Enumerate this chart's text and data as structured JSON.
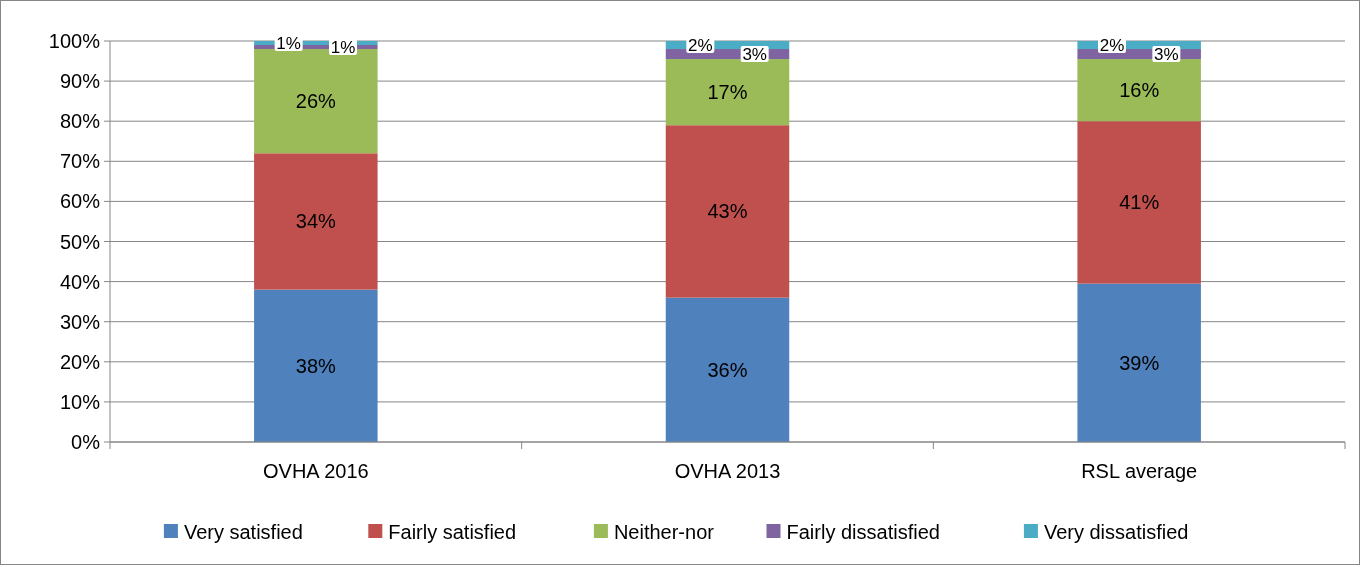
{
  "chart_data": {
    "type": "bar",
    "stacked": true,
    "categories": [
      "OVHA 2016",
      "OVHA 2013",
      "RSL average"
    ],
    "series": [
      {
        "name": "Very satisfied",
        "color": "#4f81bd",
        "values": [
          38,
          36,
          39.5
        ],
        "value_labels": [
          "38%",
          "36%",
          "39%"
        ]
      },
      {
        "name": "Fairly satisfied",
        "color": "#c0504d",
        "values": [
          34,
          43,
          40.5
        ],
        "value_labels": [
          "34%",
          "43%",
          "41%"
        ]
      },
      {
        "name": "Neither-nor",
        "color": "#9bbb59",
        "values": [
          26,
          16.5,
          15.5
        ],
        "value_labels": [
          "26%",
          "17%",
          "16%"
        ]
      },
      {
        "name": "Fairly dissatisfied",
        "color": "#8064a2",
        "values": [
          1,
          2.5,
          2.5
        ],
        "value_labels": [
          "1%",
          "3%",
          "3%"
        ]
      },
      {
        "name": "Very dissatisfied",
        "color": "#4bacc6",
        "values": [
          1,
          2,
          2
        ],
        "value_labels": [
          "1%",
          "2%",
          "2%"
        ]
      }
    ],
    "ylim": [
      0,
      100
    ],
    "yticks": [
      {
        "value": 0,
        "label": "0%"
      },
      {
        "value": 10,
        "label": "10%"
      },
      {
        "value": 20,
        "label": "20%"
      },
      {
        "value": 30,
        "label": "30%"
      },
      {
        "value": 40,
        "label": "40%"
      },
      {
        "value": 50,
        "label": "50%"
      },
      {
        "value": 60,
        "label": "60%"
      },
      {
        "value": 70,
        "label": "70%"
      },
      {
        "value": 80,
        "label": "80%"
      },
      {
        "value": 90,
        "label": "90%"
      },
      {
        "value": 100,
        "label": "100%"
      }
    ],
    "grid": "y",
    "legend": "bottom"
  }
}
